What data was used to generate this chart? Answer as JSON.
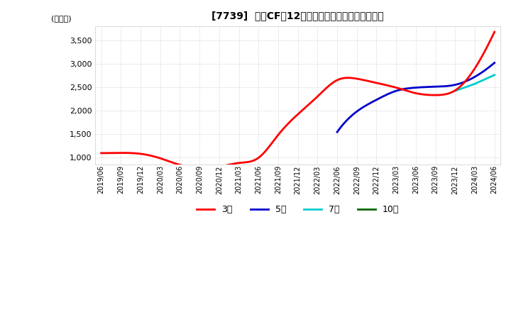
{
  "title": "[7739]  営業CFの12か月移動合計の標準偏差の推移",
  "ylabel": "(百万円)",
  "ylim": [
    850,
    3800
  ],
  "yticks": [
    1000,
    1500,
    2000,
    2500,
    3000,
    3500
  ],
  "background_color": "#ffffff",
  "plot_bg_color": "#ffffff",
  "grid_color": "#aaaaaa",
  "legend": [
    "3年",
    "5年",
    "7年",
    "10年"
  ],
  "legend_colors": [
    "#ff0000",
    "#0000cc",
    "#00cccc",
    "#006600"
  ],
  "x_labels": [
    "2019/06",
    "2019/09",
    "2019/12",
    "2020/03",
    "2020/06",
    "2020/09",
    "2020/12",
    "2021/03",
    "2021/06",
    "2021/09",
    "2021/12",
    "2022/03",
    "2022/06",
    "2022/09",
    "2022/12",
    "2023/03",
    "2023/06",
    "2023/09",
    "2023/12",
    "2024/03",
    "2024/06"
  ],
  "series_3y": [
    1090,
    1095,
    1075,
    980,
    840,
    780,
    800,
    880,
    990,
    1480,
    1920,
    2300,
    2650,
    2680,
    2590,
    2490,
    2370,
    2330,
    2430,
    2900,
    3680
  ],
  "series_5y": [
    null,
    null,
    null,
    null,
    null,
    null,
    null,
    null,
    null,
    null,
    null,
    null,
    1540,
    1980,
    2230,
    2420,
    2490,
    2510,
    2550,
    2720,
    3020
  ],
  "series_7y": [
    null,
    null,
    null,
    null,
    null,
    null,
    null,
    null,
    null,
    null,
    null,
    null,
    null,
    null,
    null,
    null,
    null,
    null,
    2420,
    2570,
    2760
  ],
  "series_10y": [
    null,
    null,
    null,
    null,
    null,
    null,
    null,
    null,
    null,
    null,
    null,
    null,
    null,
    null,
    null,
    null,
    null,
    null,
    null,
    null,
    null
  ]
}
